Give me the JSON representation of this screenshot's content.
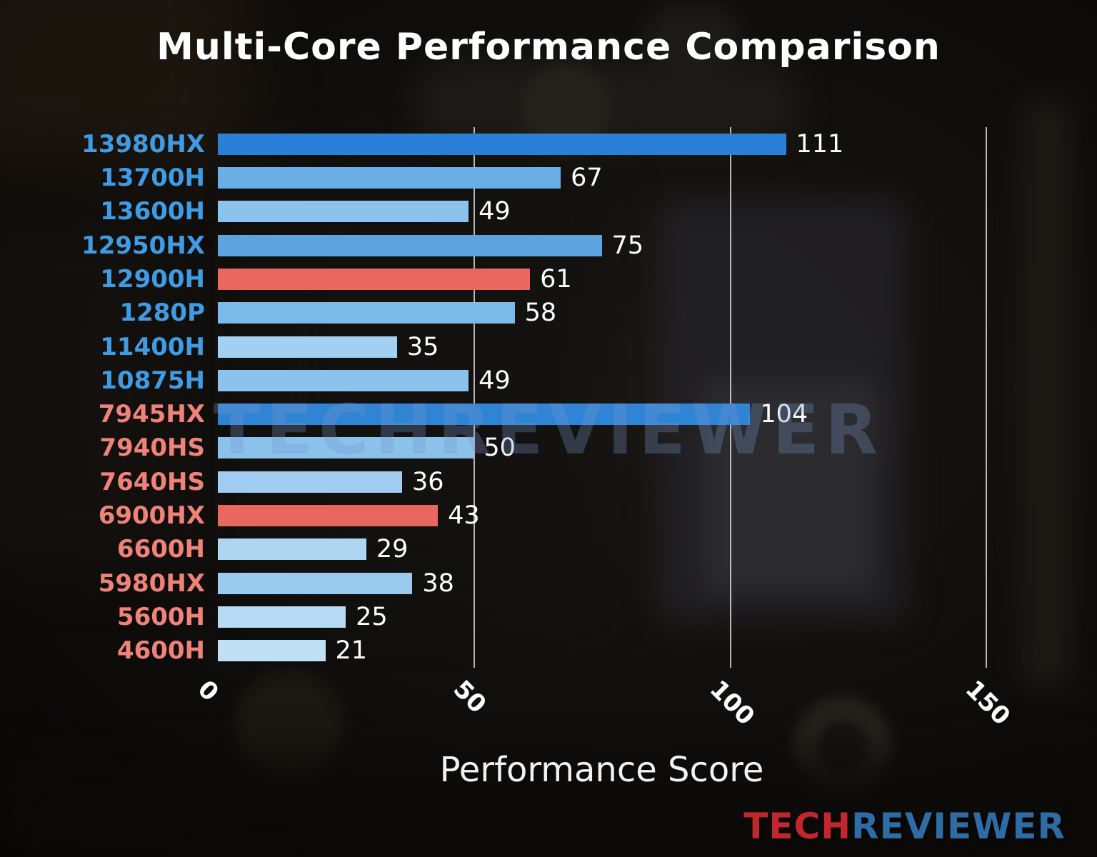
{
  "chart_data": {
    "type": "bar",
    "orientation": "horizontal",
    "title": "Multi-Core Performance Comparison",
    "xlabel": "Performance Score",
    "xlim": [
      0,
      150
    ],
    "xticks": [
      0,
      50,
      100,
      150
    ],
    "grid": "vertical gridlines at x ticks, no gridline at 0",
    "legend": "none",
    "categories": [
      "13980HX",
      "13700H",
      "13600H",
      "12950HX",
      "12900H",
      "1280P",
      "11400H",
      "10875H",
      "7945HX",
      "7940HS",
      "7640HS",
      "6900HX",
      "6600H",
      "5980HX",
      "5600H",
      "4600H"
    ],
    "values": [
      111,
      67,
      49,
      75,
      61,
      58,
      35,
      49,
      104,
      50,
      36,
      43,
      29,
      38,
      25,
      21
    ],
    "bar_colors": [
      "#2a7fd6",
      "#69afe5",
      "#8cc3ec",
      "#5ba4e0",
      "#e8675f",
      "#7cbae9",
      "#a3cff0",
      "#8cc3ec",
      "#2f84d6",
      "#8ac2ec",
      "#a0cdf0",
      "#e8675f",
      "#aed6f2",
      "#9bcaef",
      "#b7dbf4",
      "#c0e0f6"
    ],
    "label_colors": [
      "#3f9ce4",
      "#3f9ce4",
      "#3f9ce4",
      "#3f9ce4",
      "#3f9ce4",
      "#3f9ce4",
      "#3f9ce4",
      "#3f9ce4",
      "#ef837a",
      "#ef837a",
      "#ef837a",
      "#ef837a",
      "#ef837a",
      "#ef837a",
      "#ef837a",
      "#ef837a"
    ],
    "value_label_color": "#ffffff",
    "tick_label_rotation_deg": 45
  },
  "watermark": {
    "text": "TECHREVIEWER"
  },
  "logo": {
    "part1": "TECH",
    "part2": "REVIEWER",
    "part1_color": "#c1272d",
    "part2_color": "#2e6ca5"
  }
}
